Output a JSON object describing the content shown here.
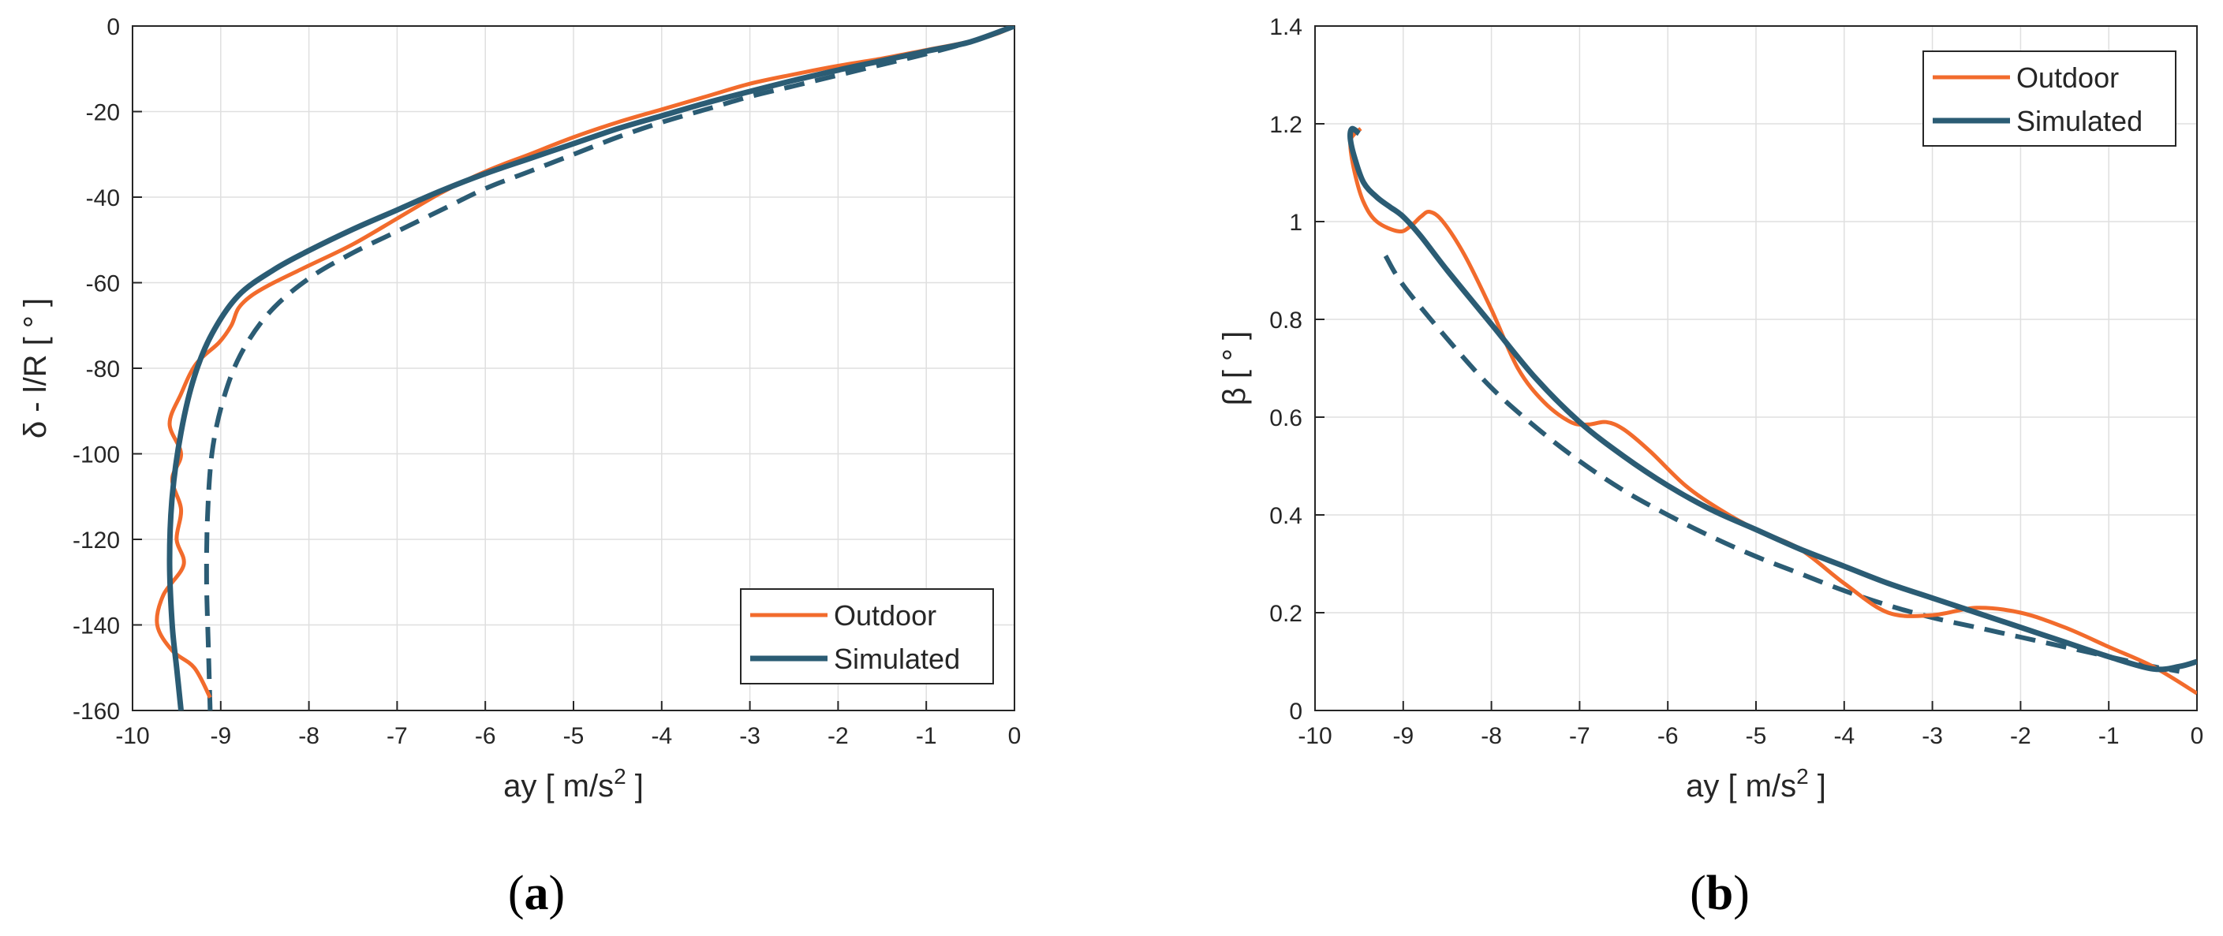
{
  "chart_data": [
    {
      "type": "line",
      "panel": "(a)",
      "panel_open": "(",
      "panel_letter": "a",
      "panel_close": ")",
      "xlabel": "ay [ m/s",
      "xlabel_sup": "2",
      "xlabel_tail": " ]",
      "ylabel": "δ - l/R [ ° ]",
      "xlim": [
        -10,
        0
      ],
      "ylim": [
        -160,
        0
      ],
      "xticks": [
        -10,
        -9,
        -8,
        -7,
        -6,
        -5,
        -4,
        -3,
        -2,
        -1,
        0
      ],
      "yticks": [
        -160,
        -140,
        -120,
        -100,
        -80,
        -60,
        -40,
        -20,
        0
      ],
      "grid": true,
      "legend_position": "bottom-right",
      "series": [
        {
          "name": "Outdoor",
          "color": "#f26b2c",
          "style": "solid",
          "x": [
            -9.12,
            -9.3,
            -9.55,
            -9.72,
            -9.65,
            -9.42,
            -9.5,
            -9.45,
            -9.55,
            -9.45,
            -9.58,
            -9.45,
            -9.28,
            -9.02,
            -8.88,
            -8.8,
            -8.65,
            -8.4,
            -8.0,
            -7.5,
            -7.0,
            -6.5,
            -6.0,
            -5.5,
            -5.0,
            -4.5,
            -4.0,
            -3.5,
            -3.0,
            -2.5,
            -2.0,
            -1.5,
            -1.0,
            -0.5,
            -0.2,
            0.0
          ],
          "y": [
            -157,
            -150,
            -146,
            -140,
            -133,
            -126,
            -120,
            -113,
            -106,
            -100,
            -93,
            -86,
            -79,
            -74,
            -70,
            -66,
            -63,
            -60,
            -56,
            -51,
            -45,
            -39,
            -34,
            -30,
            -26,
            -22.5,
            -19.5,
            -16.5,
            -13.5,
            -11.3,
            -9.3,
            -7.6,
            -5.6,
            -3.6,
            -1.8,
            0
          ]
        },
        {
          "name": "Simulated",
          "color": "#2b5c74",
          "style": "solid",
          "x": [
            -9.45,
            -9.5,
            -9.55,
            -9.58,
            -9.55,
            -9.45,
            -9.3,
            -9.1,
            -8.8,
            -8.4,
            -8.0,
            -7.5,
            -7.0,
            -6.5,
            -6.0,
            -5.5,
            -5.0,
            -4.5,
            -4.0,
            -3.5,
            -3.0,
            -2.5,
            -2.0,
            -1.5,
            -1.0,
            -0.5,
            0.0
          ],
          "y": [
            -160,
            -150,
            -140,
            -125,
            -110,
            -95,
            -82,
            -72,
            -63,
            -57,
            -52.5,
            -47.5,
            -43,
            -38.5,
            -34.5,
            -31,
            -27.5,
            -24,
            -21,
            -18,
            -15.3,
            -12.7,
            -10.3,
            -8.1,
            -5.9,
            -3.7,
            0
          ]
        },
        {
          "name": "",
          "color": "#2b5c74",
          "style": "dashed",
          "x": [
            -9.12,
            -9.14,
            -9.16,
            -9.15,
            -9.1,
            -8.98,
            -8.78,
            -8.45,
            -8.0,
            -7.5,
            -7.0,
            -6.5,
            -6.0,
            -5.5,
            -5.0,
            -4.5,
            -4.0,
            -3.5,
            -3.0,
            -2.5,
            -2.0,
            -1.5,
            -1.0,
            -0.5,
            0.0
          ],
          "y": [
            -160,
            -145,
            -130,
            -115,
            -100,
            -88,
            -77,
            -67,
            -59,
            -53,
            -48,
            -43,
            -38,
            -34,
            -30,
            -26,
            -22.5,
            -19.5,
            -16.5,
            -14,
            -11.5,
            -9,
            -6.5,
            -3.7,
            0
          ]
        }
      ]
    },
    {
      "type": "line",
      "panel": "(b)",
      "panel_open": "(",
      "panel_letter": "b",
      "panel_close": ")",
      "xlabel": "ay [ m/s",
      "xlabel_sup": "2",
      "xlabel_tail": " ]",
      "ylabel": "β [ ° ]",
      "xlim": [
        -10,
        0
      ],
      "ylim": [
        0,
        1.4
      ],
      "xticks": [
        -10,
        -9,
        -8,
        -7,
        -6,
        -5,
        -4,
        -3,
        -2,
        -1,
        0
      ],
      "yticks": [
        0,
        0.2,
        0.4,
        0.6,
        0.8,
        1,
        1.2,
        1.4
      ],
      "grid": true,
      "legend_position": "top-right",
      "series": [
        {
          "name": "Outdoor",
          "color": "#f26b2c",
          "style": "solid",
          "x": [
            -9.48,
            -9.55,
            -9.6,
            -9.55,
            -9.45,
            -9.3,
            -9.05,
            -8.92,
            -8.8,
            -8.7,
            -8.55,
            -8.3,
            -8.0,
            -7.7,
            -7.4,
            -7.1,
            -6.9,
            -6.7,
            -6.5,
            -6.2,
            -5.8,
            -5.4,
            -5.0,
            -4.5,
            -4.0,
            -3.5,
            -3.0,
            -2.5,
            -2.0,
            -1.5,
            -1.0,
            -0.5,
            0.0
          ],
          "y": [
            1.19,
            1.18,
            1.16,
            1.1,
            1.04,
            1.0,
            0.98,
            0.99,
            1.01,
            1.02,
            1.0,
            0.93,
            0.82,
            0.7,
            0.63,
            0.59,
            0.585,
            0.59,
            0.575,
            0.53,
            0.46,
            0.41,
            0.37,
            0.33,
            0.26,
            0.2,
            0.195,
            0.21,
            0.2,
            0.17,
            0.13,
            0.09,
            0.035
          ]
        },
        {
          "name": "Simulated",
          "color": "#2b5c74",
          "style": "solid",
          "x": [
            -9.5,
            -9.58,
            -9.6,
            -9.55,
            -9.45,
            -9.3,
            -9.15,
            -9.0,
            -8.8,
            -8.5,
            -8.0,
            -7.5,
            -7.0,
            -6.5,
            -6.0,
            -5.5,
            -5.0,
            -4.5,
            -4.0,
            -3.5,
            -3.0,
            -2.5,
            -2.0,
            -1.5,
            -1.0,
            -0.5,
            -0.2,
            0.0
          ],
          "y": [
            1.18,
            1.19,
            1.17,
            1.13,
            1.08,
            1.05,
            1.03,
            1.01,
            0.97,
            0.9,
            0.79,
            0.68,
            0.59,
            0.52,
            0.46,
            0.41,
            0.37,
            0.33,
            0.295,
            0.26,
            0.23,
            0.2,
            0.17,
            0.14,
            0.11,
            0.085,
            0.09,
            0.1
          ]
        },
        {
          "name": "",
          "color": "#2b5c74",
          "style": "dashed",
          "x": [
            -9.2,
            -9.0,
            -8.5,
            -8.0,
            -7.5,
            -7.0,
            -6.5,
            -6.0,
            -5.5,
            -5.0,
            -4.5,
            -4.0,
            -3.5,
            -3.0,
            -2.5,
            -2.0,
            -1.5,
            -1.0,
            -0.5,
            -0.2
          ],
          "y": [
            0.93,
            0.87,
            0.76,
            0.66,
            0.58,
            0.51,
            0.45,
            0.4,
            0.355,
            0.315,
            0.28,
            0.245,
            0.215,
            0.19,
            0.17,
            0.15,
            0.13,
            0.11,
            0.09,
            0.08
          ]
        }
      ]
    }
  ]
}
